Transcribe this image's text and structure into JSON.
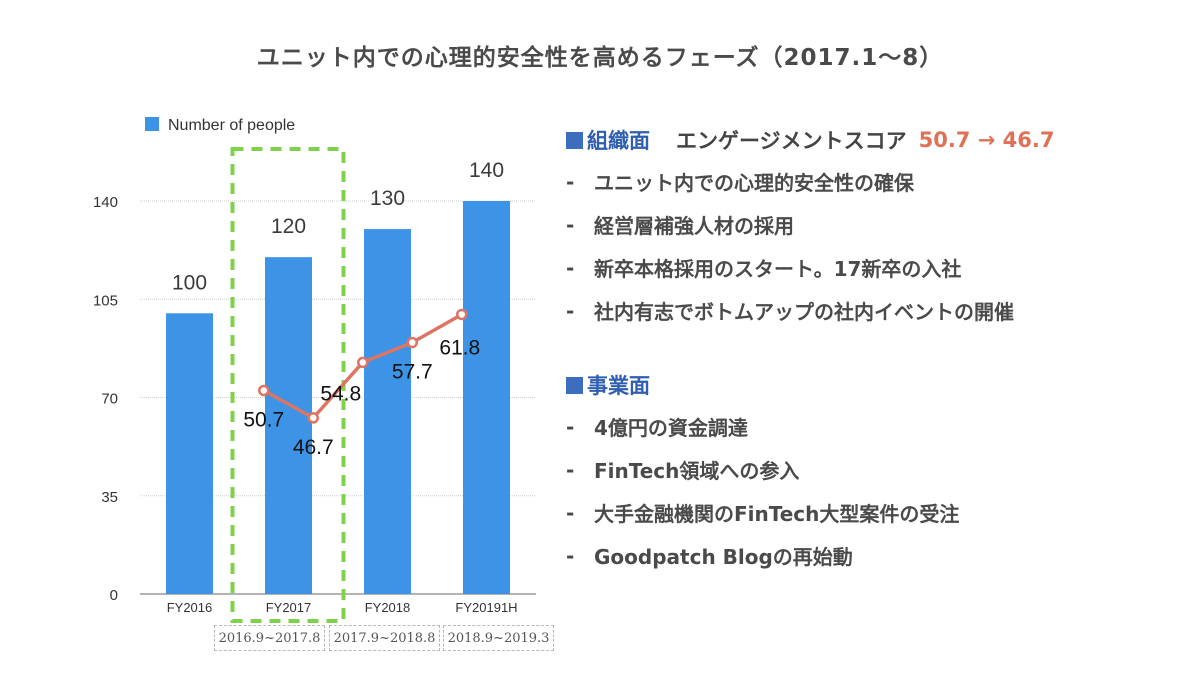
{
  "title": "ユニット内での心理的安全性を高めるフェーズ（2017.1〜8）",
  "colors": {
    "bar": "#3d94e6",
    "line": "#de7463",
    "highlight": "#7fd04a",
    "heading": "#2f5fae",
    "score": "#df7157"
  },
  "chart_data": {
    "type": "bar",
    "categories": [
      "FY2016",
      "FY2017",
      "FY2018",
      "FY20191H"
    ],
    "ylim": [
      0,
      140
    ],
    "yticks": [
      0,
      35,
      70,
      105,
      140
    ],
    "legend": "Number of people",
    "legend_position": "top-left",
    "series": [
      {
        "name": "Number of people",
        "type": "bar",
        "values": [
          100,
          120,
          130,
          140
        ],
        "labels": [
          "100",
          "120",
          "130",
          "140"
        ]
      },
      {
        "name": "Engagement score",
        "type": "line",
        "points": [
          {
            "x": 1.75,
            "y": 50.7,
            "label": "50.7"
          },
          {
            "x": 2.25,
            "y": 46.7,
            "label": "46.7"
          },
          {
            "x": 2.75,
            "y": 54.8,
            "label": "54.8"
          },
          {
            "x": 3.25,
            "y": 57.7,
            "label": "57.7"
          },
          {
            "x": 3.75,
            "y": 61.8,
            "label": "61.8"
          }
        ],
        "display_ylim": [
          35,
          68
        ]
      }
    ],
    "highlight_category": "FY2017",
    "periods": [
      "2016.9~2017.8",
      "2017.9~2018.8",
      "2018.9~2019.3"
    ]
  },
  "side": {
    "org": {
      "heading": "組織面",
      "score_label": "エンゲージメントスコア",
      "score_value": "50.7 → 46.7",
      "items": [
        "ユニット内での心理的安全性の確保",
        "経営層補強人材の採用",
        "新卒本格採用のスタート。17新卒の入社",
        "社内有志でボトムアップの社内イベントの開催"
      ]
    },
    "biz": {
      "heading": "事業面",
      "items": [
        "4億円の資金調達",
        "FinTech領域への参入",
        "大手金融機関のFinTech大型案件の受注",
        "Goodpatch Blogの再始動"
      ]
    },
    "dash": "-"
  }
}
